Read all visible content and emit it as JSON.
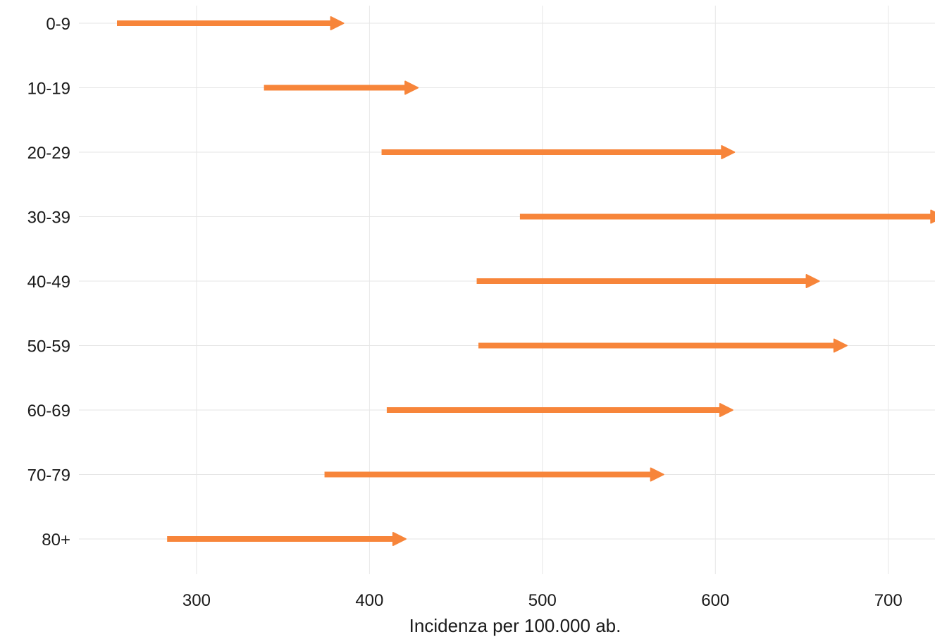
{
  "chart_data": {
    "type": "arrow-range",
    "xlabel": "Incidenza per 100.000 ab.",
    "ylabel": "",
    "xlim": [
      232,
      727
    ],
    "xticks": [
      300,
      400,
      500,
      600,
      700
    ],
    "categories": [
      "0-9",
      "10-19",
      "20-29",
      "30-39",
      "40-49",
      "50-59",
      "60-69",
      "70-79",
      "80+"
    ],
    "start": [
      254,
      339,
      407,
      487,
      462,
      463,
      410,
      374,
      283
    ],
    "end": [
      385,
      428,
      611,
      732,
      660,
      676,
      610,
      570,
      421
    ],
    "arrow_color": "#f7853a",
    "grid": true,
    "legend": "none"
  }
}
